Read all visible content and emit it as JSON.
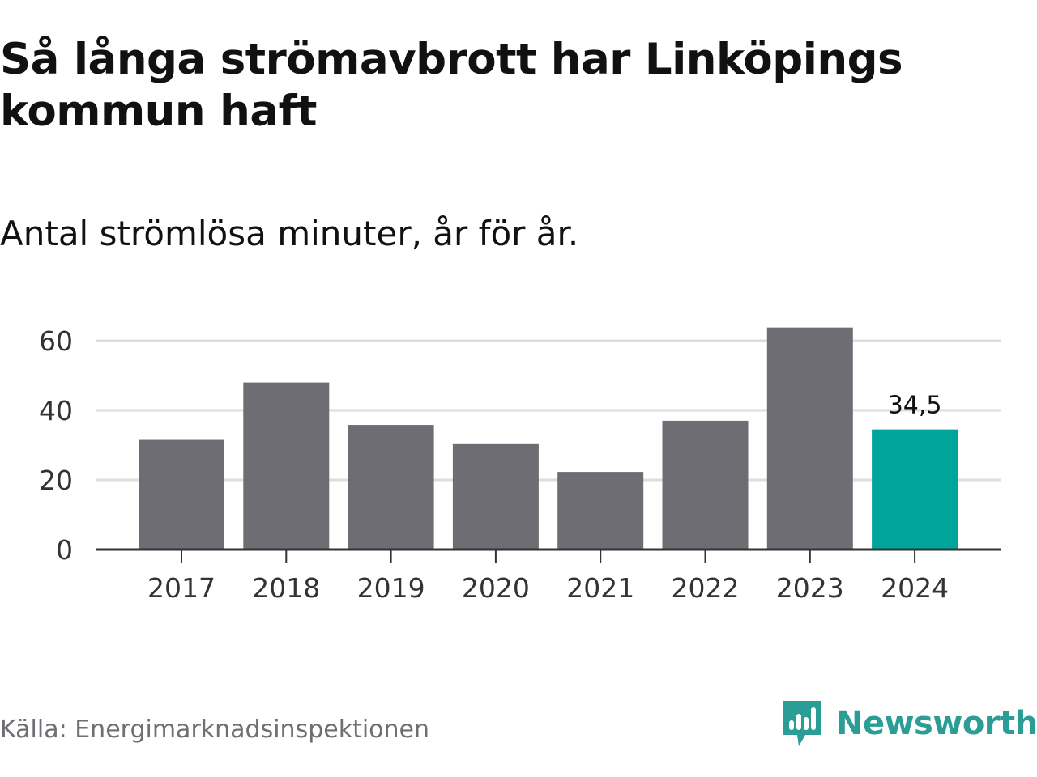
{
  "title": "Så långa strömavbrott har Linköpings kommun haft",
  "subtitle": "Antal strömlösa minuter, år för år.",
  "source": "Källa: Energimarknadsinspektionen",
  "logo": {
    "text": "Newsworthy",
    "icon": "newsworthy-logo-icon",
    "color": "#2a9d94"
  },
  "colors": {
    "bar": "#6e6d73",
    "highlight": "#00a49a",
    "grid": "#dddddd",
    "axis": "#333333",
    "text": "#111111",
    "tick_text": "#333333"
  },
  "chart_data": {
    "type": "bar",
    "categories": [
      "2017",
      "2018",
      "2019",
      "2020",
      "2021",
      "2022",
      "2023",
      "2024"
    ],
    "values": [
      31.5,
      48,
      35.8,
      30.5,
      22.3,
      37,
      63.8,
      34.5
    ],
    "highlight_index": 7,
    "data_labels": [
      null,
      null,
      null,
      null,
      null,
      null,
      null,
      "34,5"
    ],
    "yticks": [
      0,
      20,
      40,
      60
    ],
    "ylim": [
      0,
      60
    ],
    "grid": true,
    "legend": "none"
  }
}
